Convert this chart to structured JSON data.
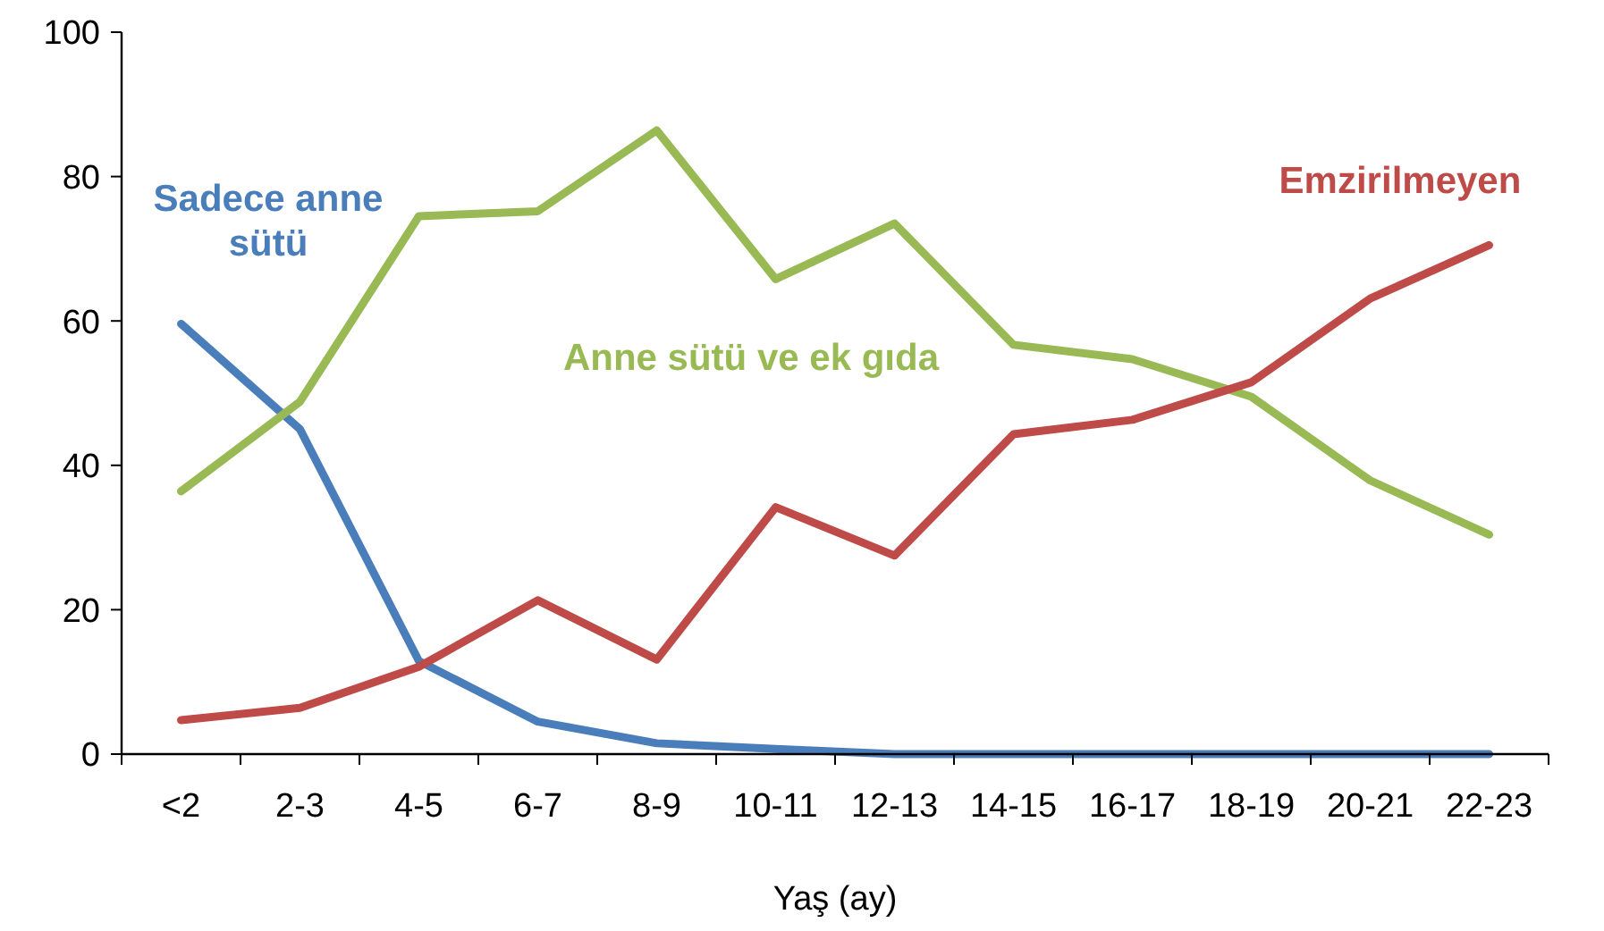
{
  "chart_data": {
    "type": "line",
    "xlabel": "Yaş (ay)",
    "categories": [
      "<2",
      "2-3",
      "4-5",
      "6-7",
      "8-9",
      "10-11",
      "12-13",
      "14-15",
      "16-17",
      "18-19",
      "20-21",
      "22-23"
    ],
    "series": [
      {
        "name": "Sadece anne sütü",
        "color": "#4a7ebb",
        "values": [
          59.6,
          45,
          12.9,
          4.5,
          1.5,
          0.7,
          0,
          0,
          0,
          0,
          0,
          0
        ]
      },
      {
        "name": "Anne sütü ve ek gıda",
        "color": "#98b954",
        "values": [
          36.4,
          48.8,
          74.5,
          75.2,
          86.4,
          65.8,
          73.5,
          56.7,
          54.7,
          49.5,
          37.9,
          30.4
        ]
      },
      {
        "name": "Emzirilmeyen",
        "color": "#be4b48",
        "values": [
          4.7,
          6.4,
          12.1,
          21.3,
          13.1,
          34.2,
          27.5,
          44.3,
          46.3,
          51.5,
          63.1,
          70.5
        ]
      }
    ],
    "ylim": [
      0,
      100
    ],
    "yticks": [
      0,
      20,
      40,
      60,
      80,
      100
    ],
    "grid": false,
    "legend": false
  }
}
